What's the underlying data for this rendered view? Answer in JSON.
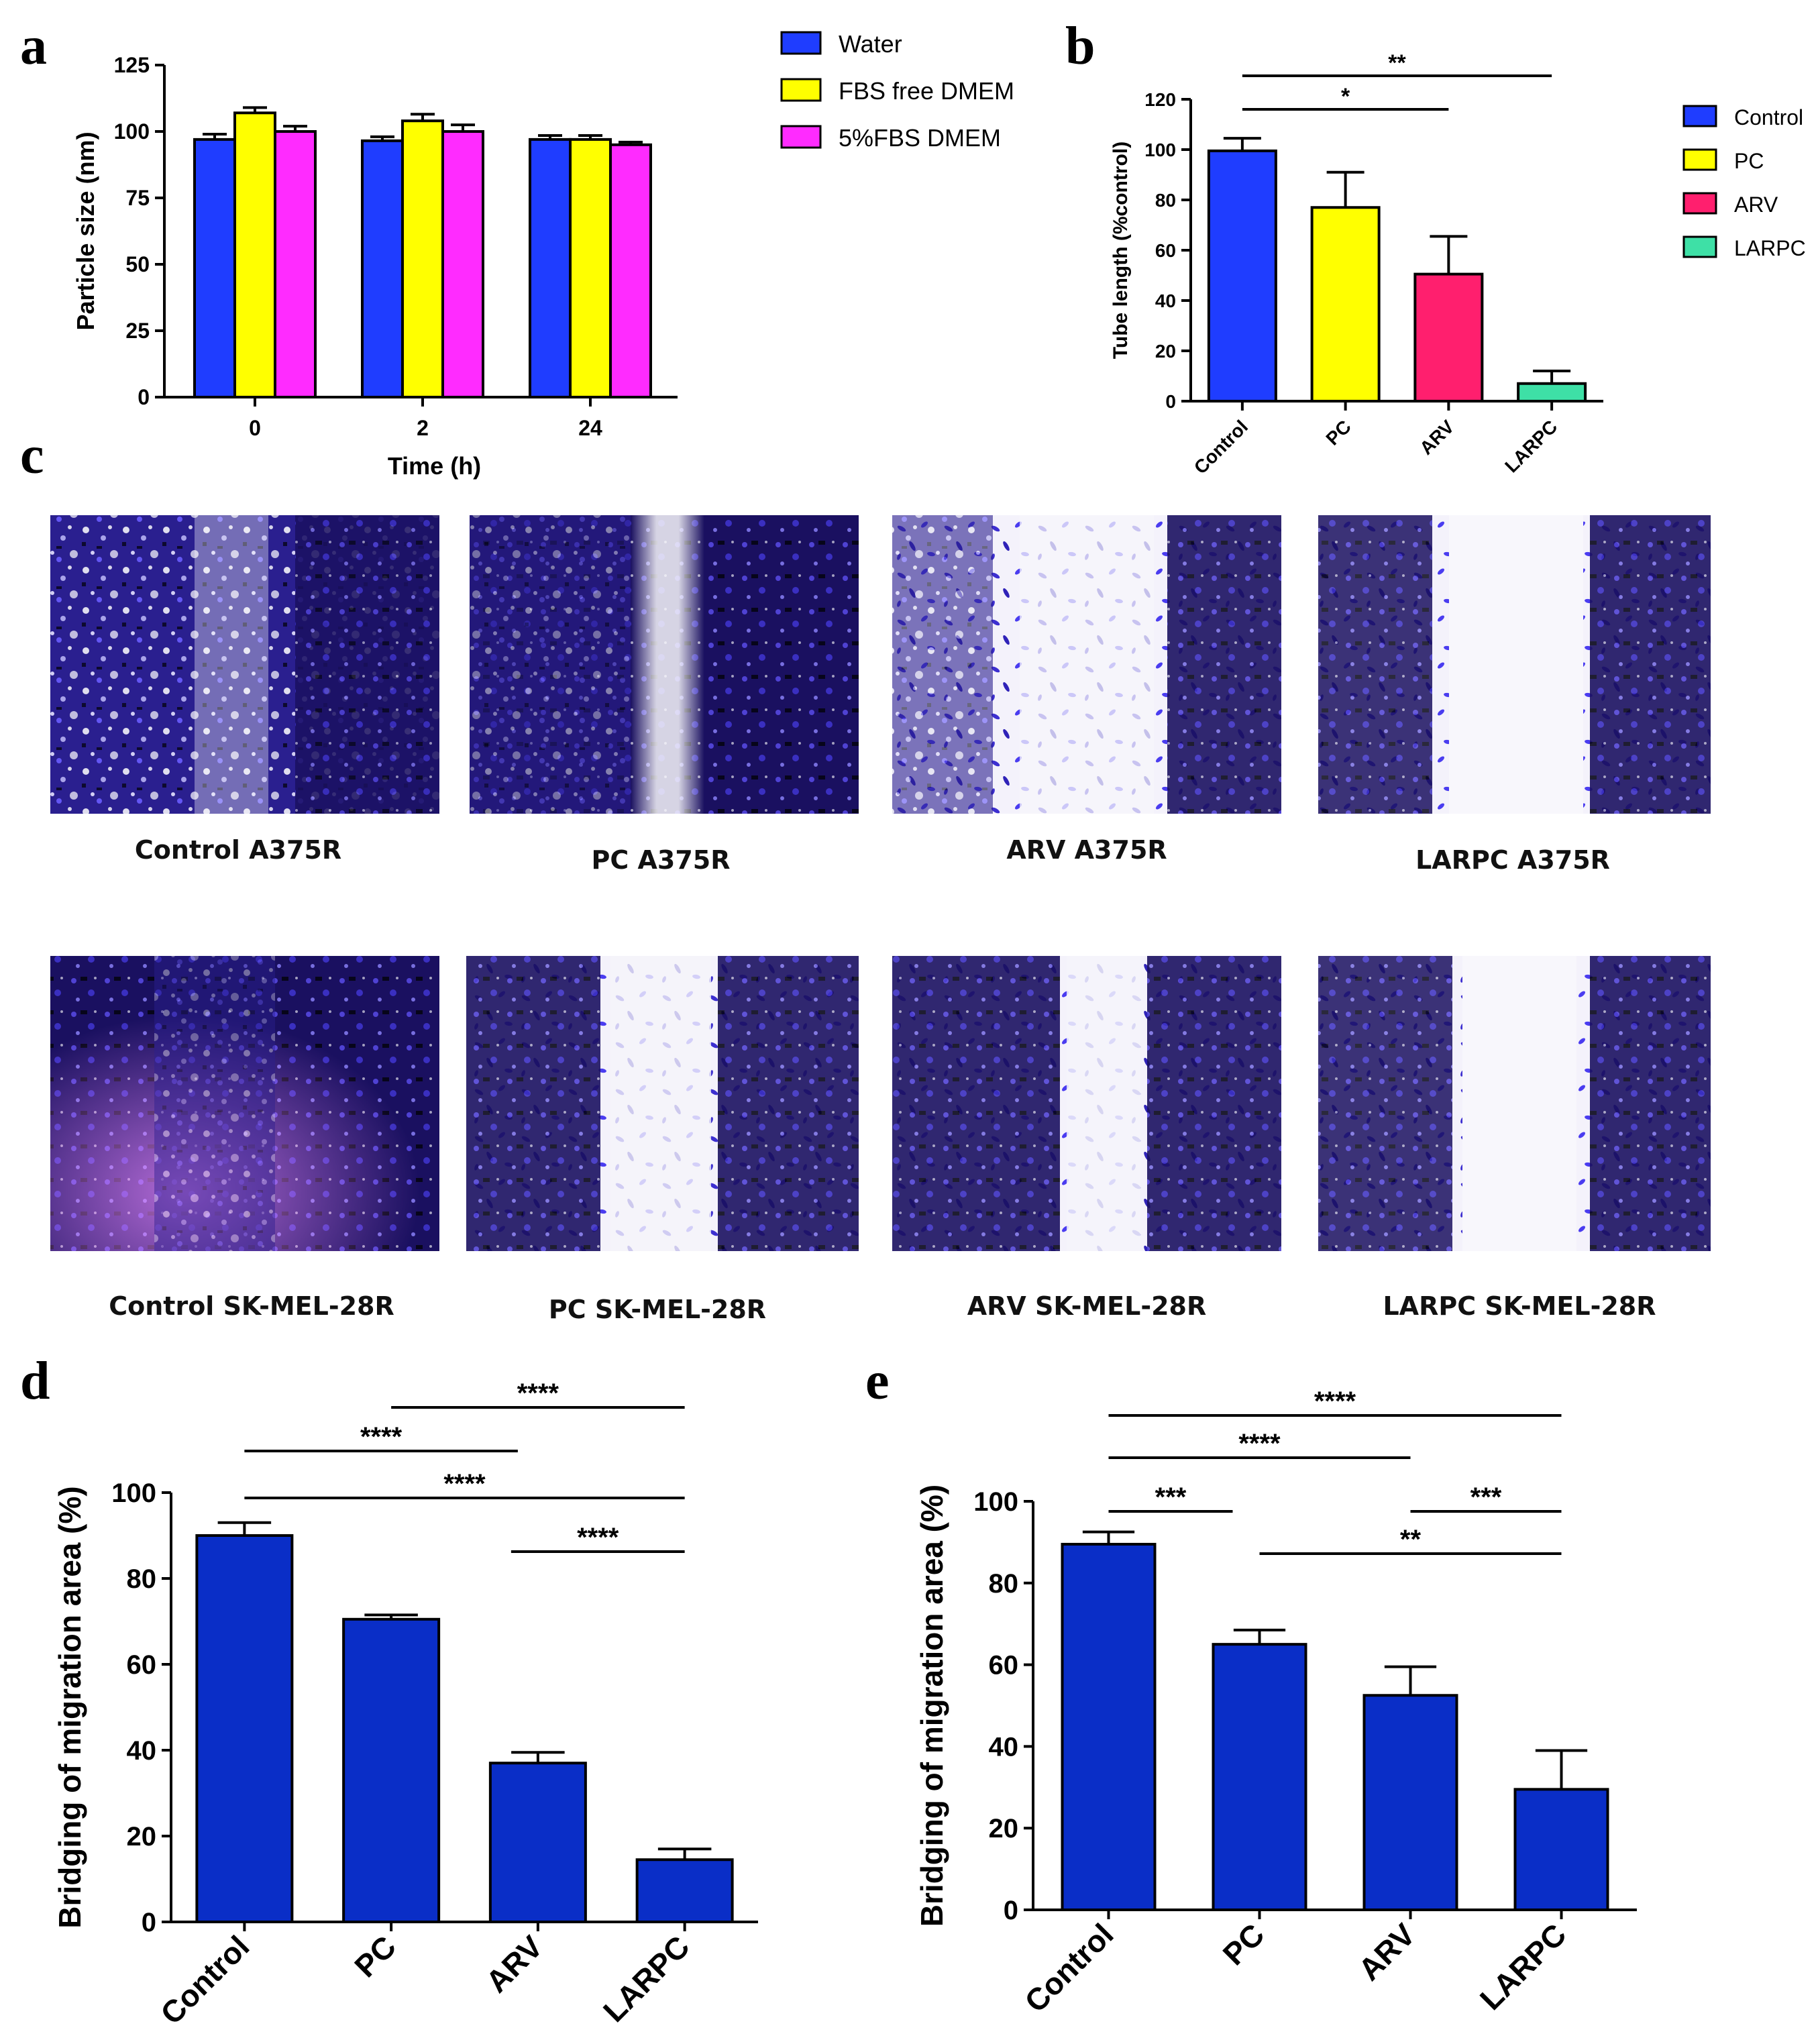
{
  "chart_data": [
    {
      "panel": "a",
      "type": "bar",
      "categories": [
        "0",
        "2",
        "24"
      ],
      "series": [
        {
          "name": "Water",
          "color": "#1f3dff",
          "values": [
            97,
            96.5,
            97
          ],
          "errors": [
            2,
            1.5,
            1.5
          ]
        },
        {
          "name": "FBS free DMEM",
          "color": "#ffff00",
          "values": [
            107,
            104,
            97
          ],
          "errors": [
            2,
            2.5,
            1.5
          ]
        },
        {
          "name": "5%FBS DMEM",
          "color": "#ff2bff",
          "values": [
            100,
            100,
            95
          ],
          "errors": [
            2,
            2.5,
            1
          ]
        }
      ],
      "xlabel": "Time (h)",
      "ylabel": "Particle size (nm)",
      "ylim": [
        0,
        125
      ],
      "yticks": [
        "0",
        "25",
        "50",
        "75",
        "100",
        "125"
      ],
      "legend": "top-right"
    },
    {
      "panel": "b",
      "type": "bar",
      "categories": [
        "Control",
        "PC",
        "ARV",
        "LARPC"
      ],
      "values": [
        99.5,
        77,
        50.5,
        7
      ],
      "errors": [
        5,
        14,
        15,
        5
      ],
      "colors": [
        "#1f3dff",
        "#ffff00",
        "#ff1f6e",
        "#3ee0a6"
      ],
      "legend_labels": [
        "Control",
        "PC",
        "ARV",
        "LARPC"
      ],
      "ylabel": "Tube length (%control)",
      "ylim": [
        0,
        120
      ],
      "yticks": [
        "0",
        "20",
        "40",
        "60",
        "80",
        "100",
        "120"
      ],
      "significance": [
        {
          "from": "Control",
          "to": "ARV",
          "label": "*"
        },
        {
          "from": "Control",
          "to": "LARPC",
          "label": "**"
        }
      ]
    },
    {
      "panel": "d",
      "type": "bar",
      "categories": [
        "Control",
        "PC",
        "ARV",
        "LARPC"
      ],
      "values": [
        90,
        70.5,
        37,
        14.5
      ],
      "errors": [
        3,
        1,
        2.5,
        2.5
      ],
      "color": "#0a2ec7",
      "ylabel": "Bridging of migration area (%)",
      "ylim": [
        0,
        100
      ],
      "yticks": [
        "0",
        "20",
        "40",
        "60",
        "80",
        "100"
      ],
      "significance": [
        {
          "from": "PC",
          "to": "LARPC",
          "label": "****"
        },
        {
          "from": "Control",
          "to": "ARV",
          "label": "****"
        },
        {
          "from": "Control",
          "to": "LARPC",
          "label": "****"
        },
        {
          "from": "ARV",
          "to": "LARPC",
          "label": "****"
        }
      ]
    },
    {
      "panel": "e",
      "type": "bar",
      "categories": [
        "Control",
        "PC",
        "ARV",
        "LARPC"
      ],
      "values": [
        89.5,
        65,
        52.5,
        29.5
      ],
      "errors": [
        3,
        3.5,
        7,
        9.5
      ],
      "color": "#0a2ec7",
      "ylabel": "Bridging of migration area (%)",
      "ylim": [
        0,
        100
      ],
      "yticks": [
        "0",
        "20",
        "40",
        "60",
        "80",
        "100"
      ],
      "significance": [
        {
          "from": "Control",
          "to": "LARPC",
          "label": "****"
        },
        {
          "from": "Control",
          "to": "ARV",
          "label": "****"
        },
        {
          "from": "Control",
          "to": "PC",
          "label": "***"
        },
        {
          "from": "ARV",
          "to": "LARPC",
          "label": "***"
        },
        {
          "from": "PC",
          "to": "LARPC",
          "label": "**"
        }
      ]
    }
  ],
  "panels": {
    "a": "a",
    "b": "b",
    "c": "c",
    "d": "d",
    "e": "e"
  },
  "micrographs": {
    "row1": [
      "Control A375R",
      "PC A375R",
      "ARV A375R",
      "LARPC A375R"
    ],
    "row2": [
      "Control SK-MEL-28R",
      "PC SK-MEL-28R",
      "ARV SK-MEL-28R",
      "LARPC SK-MEL-28R"
    ]
  }
}
